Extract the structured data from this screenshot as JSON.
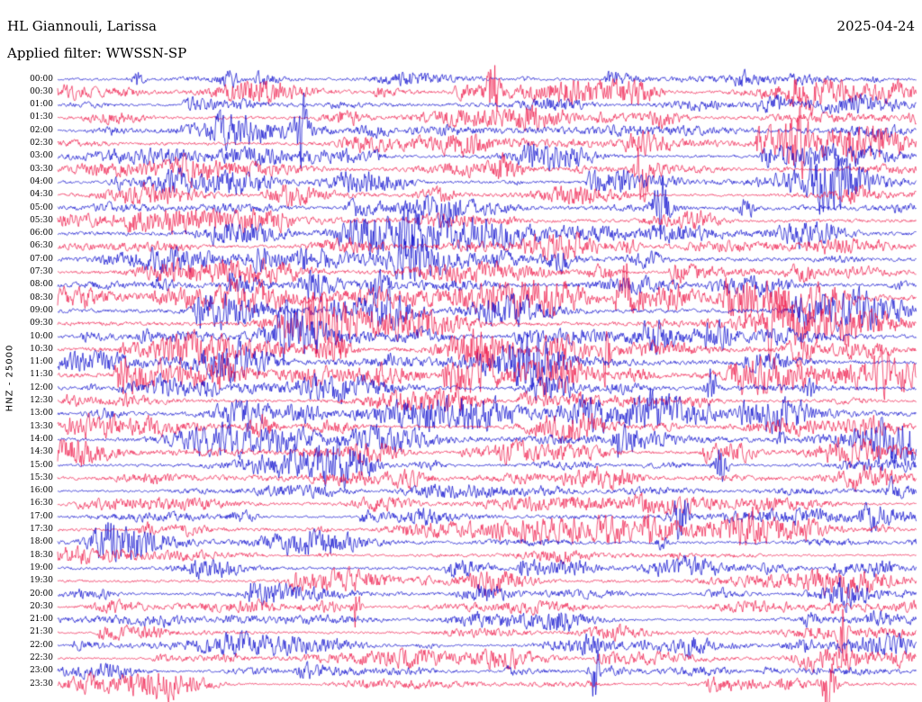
{
  "header": {
    "station": "HL Giannouli, Larissa",
    "date": "2025-04-24",
    "filter": "Applied filter: WWSSN-SP"
  },
  "left_axis": {
    "label": "HNZ - 25000"
  },
  "chart_data": {
    "type": "line",
    "variant": "helicorder-seismogram",
    "title": "HL Giannouli, Larissa",
    "date": "2025-04-24",
    "filter": "WWSSN-SP",
    "channel": "HNZ",
    "scale": "25000",
    "rows": 48,
    "minutes_per_row": 30,
    "grid": false,
    "legend": "none",
    "ylabel": "HNZ - 25000",
    "row_labels": [
      "00:00",
      "00:30",
      "01:00",
      "01:30",
      "02:00",
      "02:30",
      "03:00",
      "03:30",
      "04:00",
      "04:30",
      "05:00",
      "05:30",
      "06:00",
      "06:30",
      "07:00",
      "07:30",
      "08:00",
      "08:30",
      "09:00",
      "09:30",
      "10:00",
      "10:30",
      "11:00",
      "11:30",
      "12:00",
      "12:30",
      "13:00",
      "13:30",
      "14:00",
      "14:30",
      "15:00",
      "15:30",
      "16:00",
      "16:30",
      "17:00",
      "17:30",
      "18:00",
      "18:30",
      "19:00",
      "19:30",
      "20:00",
      "20:30",
      "21:00",
      "21:30",
      "22:00",
      "22:30",
      "23:00",
      "23:30"
    ],
    "colors": {
      "blue": "#0000cc",
      "red": "#ee1144",
      "background": "#ffffff",
      "text": "#000000"
    },
    "color_pattern": "alternating: even rows blue, odd rows red",
    "waveform": "continuous band-filtered seismic noise traces with intermittent event bursts (amplitudes vary per half-hour row; busiest mid-day rows)"
  }
}
